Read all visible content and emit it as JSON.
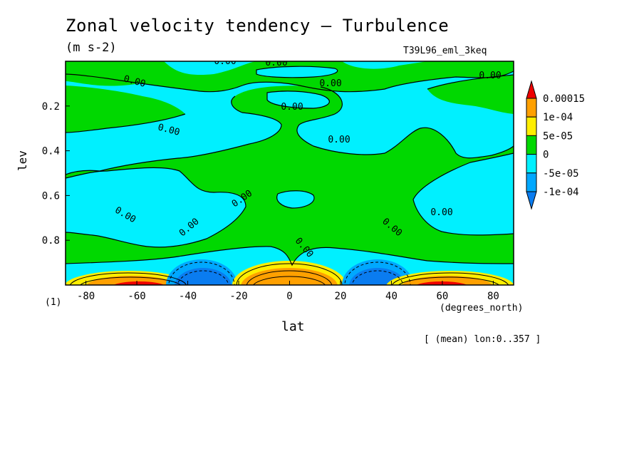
{
  "header": {
    "title": "Zonal velocity tendency — Turbulence",
    "units": "(m s-2)",
    "run_id": "T39L96_eml_3keq",
    "y_corner": "(1)",
    "x_units": "(degrees_north)",
    "mean_label": "[ (mean) lon:0..357 ]"
  },
  "colors": {
    "lt_m1e4": "#0a7cf0",
    "m1e4_m5e5": "#00a8ff",
    "m5e5_0": "#00f0ff",
    "z_5e5": "#00d800",
    "5e5_1e4": "#ffee00",
    "1e4_15e4": "#ffa000",
    "gt_15e4": "#ee0000"
  },
  "chart_data": {
    "type": "contour",
    "title": "Zonal velocity tendency — Turbulence",
    "xlabel": "lat",
    "ylabel": "lev",
    "x_ticks": [
      "-80",
      "-60",
      "-40",
      "-20",
      "0",
      "20",
      "40",
      "60",
      "80"
    ],
    "y_ticks": [
      "0.2",
      "0.4",
      "0.6",
      "0.8"
    ],
    "x_range": [
      -88,
      88
    ],
    "y_range": [
      0.0,
      1.0
    ],
    "y_inverted": true,
    "colorbar_levels": [
      "0.00015",
      "1e-04",
      "5e-05",
      "0",
      "-5e-05",
      "-1e-04"
    ],
    "contour_labels": [
      "0.00",
      "0.00",
      "0.00",
      "0.00",
      "0.00",
      "0.00",
      "0.00",
      "0.00",
      "0.00",
      "0.00",
      "0.00",
      "0.00",
      "0.00",
      "0.00"
    ],
    "features": [
      {
        "name": "positive-surface-jet-south",
        "lat": -57,
        "peak": "> 0.00015"
      },
      {
        "name": "negative-surface-south",
        "lat": -35,
        "peak": "< -1e-04"
      },
      {
        "name": "positive-surface-equator",
        "lat": 0,
        "peak": "1e-04 .. 0.00015"
      },
      {
        "name": "negative-surface-north",
        "lat": 35,
        "peak": "< -1e-04"
      },
      {
        "name": "positive-surface-jet-north",
        "lat": 57,
        "peak": "> 0.00015"
      }
    ]
  }
}
